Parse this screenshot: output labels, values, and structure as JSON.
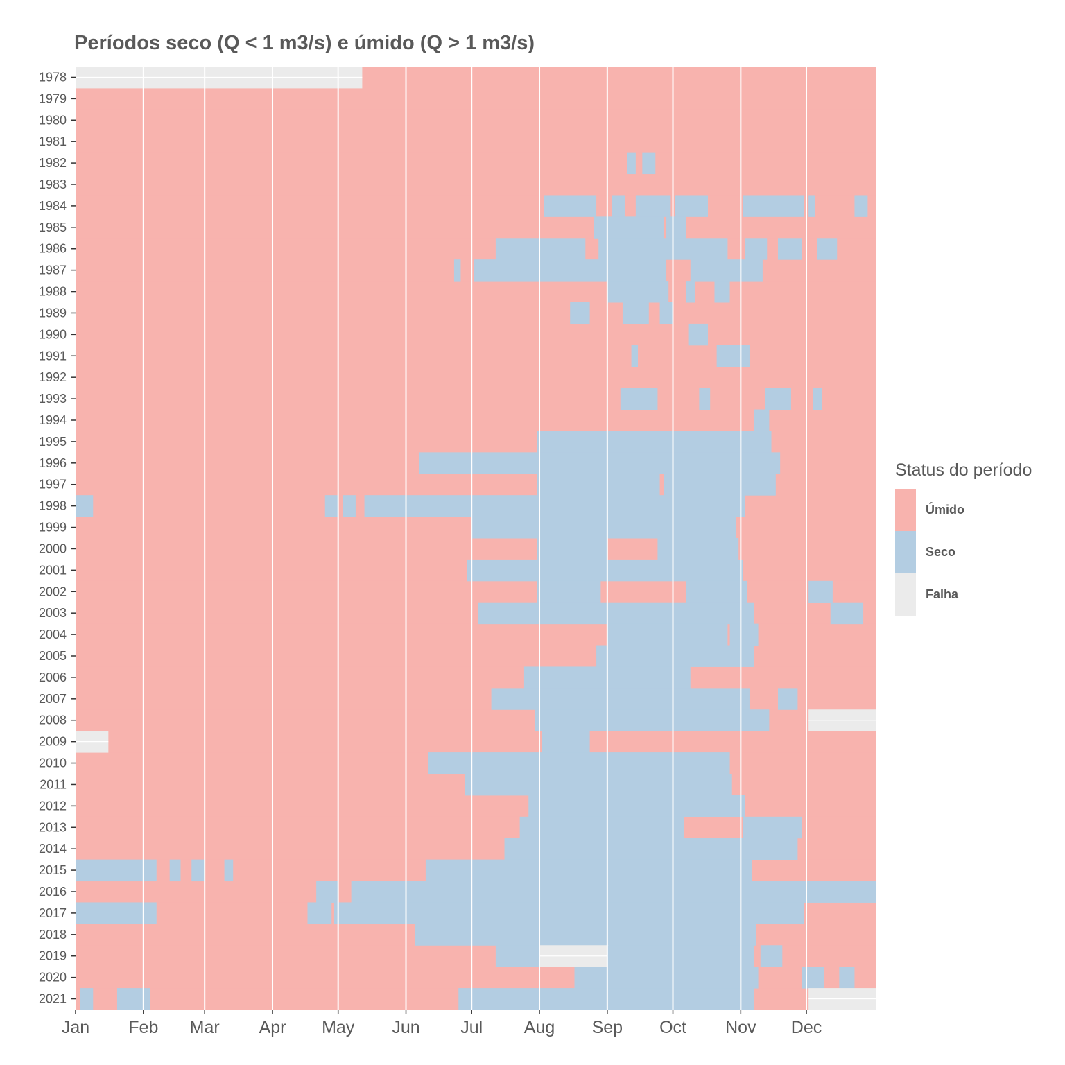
{
  "chart_data": {
    "type": "heatmap",
    "title": "Períodos seco (Q < 1 m3/s) e úmido (Q > 1 m3/s)",
    "xlabel": "",
    "ylabel": "",
    "x_unit": "day of year",
    "x_range": [
      1,
      366
    ],
    "x_ticks": [
      {
        "label": "Jan",
        "day": 1
      },
      {
        "label": "Feb",
        "day": 32
      },
      {
        "label": "Mar",
        "day": 60
      },
      {
        "label": "Apr",
        "day": 91
      },
      {
        "label": "May",
        "day": 121
      },
      {
        "label": "Jun",
        "day": 152
      },
      {
        "label": "Jul",
        "day": 182
      },
      {
        "label": "Aug",
        "day": 213
      },
      {
        "label": "Sep",
        "day": 244
      },
      {
        "label": "Oct",
        "day": 274
      },
      {
        "label": "Nov",
        "day": 305
      },
      {
        "label": "Dec",
        "day": 335
      }
    ],
    "years": [
      1978,
      1979,
      1980,
      1981,
      1982,
      1983,
      1984,
      1985,
      1986,
      1987,
      1988,
      1989,
      1990,
      1991,
      1992,
      1993,
      1994,
      1995,
      1996,
      1997,
      1998,
      1999,
      2000,
      2001,
      2002,
      2003,
      2004,
      2005,
      2006,
      2007,
      2008,
      2009,
      2010,
      2011,
      2012,
      2013,
      2014,
      2015,
      2016,
      2017,
      2018,
      2019,
      2020,
      2021
    ],
    "legend": {
      "title": "Status do período",
      "position": "right",
      "categories": [
        {
          "label": "Úmido",
          "color": "#F8B3AE"
        },
        {
          "label": "Seco",
          "color": "#B3CDE2"
        },
        {
          "label": "Falha",
          "color": "#EBEBEB"
        }
      ]
    },
    "default_status": "Úmido",
    "periods": [
      {
        "year": 1978,
        "status": "Falha",
        "start": 1,
        "end": 131
      },
      {
        "year": 1982,
        "status": "Seco",
        "start": 253,
        "end": 256
      },
      {
        "year": 1982,
        "status": "Seco",
        "start": 260,
        "end": 265
      },
      {
        "year": 1984,
        "status": "Seco",
        "start": 215,
        "end": 238
      },
      {
        "year": 1984,
        "status": "Seco",
        "start": 246,
        "end": 251
      },
      {
        "year": 1984,
        "status": "Seco",
        "start": 257,
        "end": 272
      },
      {
        "year": 1984,
        "status": "Seco",
        "start": 275,
        "end": 289
      },
      {
        "year": 1984,
        "status": "Seco",
        "start": 306,
        "end": 333
      },
      {
        "year": 1984,
        "status": "Seco",
        "start": 336,
        "end": 338
      },
      {
        "year": 1984,
        "status": "Seco",
        "start": 357,
        "end": 362
      },
      {
        "year": 1985,
        "status": "Seco",
        "start": 238,
        "end": 269
      },
      {
        "year": 1985,
        "status": "Seco",
        "start": 271,
        "end": 279
      },
      {
        "year": 1986,
        "status": "Seco",
        "start": 193,
        "end": 233
      },
      {
        "year": 1986,
        "status": "Seco",
        "start": 240,
        "end": 298
      },
      {
        "year": 1986,
        "status": "Seco",
        "start": 307,
        "end": 316
      },
      {
        "year": 1986,
        "status": "Seco",
        "start": 322,
        "end": 332
      },
      {
        "year": 1986,
        "status": "Seco",
        "start": 340,
        "end": 348
      },
      {
        "year": 1987,
        "status": "Seco",
        "start": 174,
        "end": 176
      },
      {
        "year": 1987,
        "status": "Seco",
        "start": 183,
        "end": 270
      },
      {
        "year": 1987,
        "status": "Seco",
        "start": 282,
        "end": 314
      },
      {
        "year": 1988,
        "status": "Seco",
        "start": 244,
        "end": 271
      },
      {
        "year": 1988,
        "status": "Seco",
        "start": 280,
        "end": 283
      },
      {
        "year": 1988,
        "status": "Seco",
        "start": 293,
        "end": 299
      },
      {
        "year": 1989,
        "status": "Seco",
        "start": 227,
        "end": 235
      },
      {
        "year": 1989,
        "status": "Seco",
        "start": 251,
        "end": 262
      },
      {
        "year": 1989,
        "status": "Seco",
        "start": 268,
        "end": 273
      },
      {
        "year": 1990,
        "status": "Seco",
        "start": 281,
        "end": 289
      },
      {
        "year": 1991,
        "status": "Seco",
        "start": 255,
        "end": 257
      },
      {
        "year": 1991,
        "status": "Seco",
        "start": 294,
        "end": 308
      },
      {
        "year": 1993,
        "status": "Seco",
        "start": 250,
        "end": 266
      },
      {
        "year": 1993,
        "status": "Seco",
        "start": 286,
        "end": 290
      },
      {
        "year": 1993,
        "status": "Seco",
        "start": 316,
        "end": 327
      },
      {
        "year": 1993,
        "status": "Seco",
        "start": 338,
        "end": 341
      },
      {
        "year": 1994,
        "status": "Seco",
        "start": 311,
        "end": 317
      },
      {
        "year": 1995,
        "status": "Seco",
        "start": 212,
        "end": 318
      },
      {
        "year": 1996,
        "status": "Seco",
        "start": 158,
        "end": 322
      },
      {
        "year": 1997,
        "status": "Seco",
        "start": 212,
        "end": 267
      },
      {
        "year": 1997,
        "status": "Seco",
        "start": 270,
        "end": 320
      },
      {
        "year": 1998,
        "status": "Seco",
        "start": 1,
        "end": 8
      },
      {
        "year": 1998,
        "status": "Seco",
        "start": 115,
        "end": 120
      },
      {
        "year": 1998,
        "status": "Seco",
        "start": 123,
        "end": 128
      },
      {
        "year": 1998,
        "status": "Seco",
        "start": 133,
        "end": 306
      },
      {
        "year": 1999,
        "status": "Seco",
        "start": 182,
        "end": 302
      },
      {
        "year": 2000,
        "status": "Seco",
        "start": 212,
        "end": 243
      },
      {
        "year": 2000,
        "status": "Seco",
        "start": 267,
        "end": 303
      },
      {
        "year": 2001,
        "status": "Seco",
        "start": 180,
        "end": 305
      },
      {
        "year": 2002,
        "status": "Seco",
        "start": 212,
        "end": 240
      },
      {
        "year": 2002,
        "status": "Seco",
        "start": 280,
        "end": 307
      },
      {
        "year": 2002,
        "status": "Seco",
        "start": 336,
        "end": 346
      },
      {
        "year": 2003,
        "status": "Seco",
        "start": 185,
        "end": 310
      },
      {
        "year": 2003,
        "status": "Seco",
        "start": 346,
        "end": 360
      },
      {
        "year": 2004,
        "status": "Seco",
        "start": 244,
        "end": 298
      },
      {
        "year": 2004,
        "status": "Seco",
        "start": 300,
        "end": 312
      },
      {
        "year": 2005,
        "status": "Seco",
        "start": 239,
        "end": 310
      },
      {
        "year": 2006,
        "status": "Seco",
        "start": 206,
        "end": 281
      },
      {
        "year": 2007,
        "status": "Seco",
        "start": 191,
        "end": 308
      },
      {
        "year": 2007,
        "status": "Seco",
        "start": 322,
        "end": 330
      },
      {
        "year": 2008,
        "status": "Seco",
        "start": 211,
        "end": 317
      },
      {
        "year": 2008,
        "status": "Falha",
        "start": 336,
        "end": 366
      },
      {
        "year": 2009,
        "status": "Falha",
        "start": 1,
        "end": 15
      },
      {
        "year": 2009,
        "status": "Seco",
        "start": 214,
        "end": 235
      },
      {
        "year": 2010,
        "status": "Seco",
        "start": 162,
        "end": 299
      },
      {
        "year": 2011,
        "status": "Seco",
        "start": 179,
        "end": 300
      },
      {
        "year": 2012,
        "status": "Seco",
        "start": 208,
        "end": 306
      },
      {
        "year": 2013,
        "status": "Seco",
        "start": 204,
        "end": 278
      },
      {
        "year": 2013,
        "status": "Seco",
        "start": 306,
        "end": 332
      },
      {
        "year": 2014,
        "status": "Seco",
        "start": 197,
        "end": 330
      },
      {
        "year": 2015,
        "status": "Seco",
        "start": 1,
        "end": 37
      },
      {
        "year": 2015,
        "status": "Seco",
        "start": 44,
        "end": 48
      },
      {
        "year": 2015,
        "status": "Seco",
        "start": 54,
        "end": 59
      },
      {
        "year": 2015,
        "status": "Seco",
        "start": 69,
        "end": 72
      },
      {
        "year": 2015,
        "status": "Seco",
        "start": 161,
        "end": 309
      },
      {
        "year": 2016,
        "status": "Seco",
        "start": 111,
        "end": 120
      },
      {
        "year": 2016,
        "status": "Seco",
        "start": 127,
        "end": 366
      },
      {
        "year": 2017,
        "status": "Seco",
        "start": 1,
        "end": 37
      },
      {
        "year": 2017,
        "status": "Seco",
        "start": 107,
        "end": 117
      },
      {
        "year": 2017,
        "status": "Seco",
        "start": 119,
        "end": 333
      },
      {
        "year": 2018,
        "status": "Seco",
        "start": 156,
        "end": 311
      },
      {
        "year": 2019,
        "status": "Seco",
        "start": 193,
        "end": 213
      },
      {
        "year": 2019,
        "status": "Falha",
        "start": 213,
        "end": 244
      },
      {
        "year": 2019,
        "status": "Seco",
        "start": 244,
        "end": 310
      },
      {
        "year": 2019,
        "status": "Seco",
        "start": 314,
        "end": 323
      },
      {
        "year": 2020,
        "status": "Seco",
        "start": 229,
        "end": 312
      },
      {
        "year": 2020,
        "status": "Seco",
        "start": 333,
        "end": 342
      },
      {
        "year": 2020,
        "status": "Seco",
        "start": 350,
        "end": 356
      },
      {
        "year": 2021,
        "status": "Seco",
        "start": 3,
        "end": 8
      },
      {
        "year": 2021,
        "status": "Seco",
        "start": 20,
        "end": 34
      },
      {
        "year": 2021,
        "status": "Seco",
        "start": 176,
        "end": 310
      },
      {
        "year": 2021,
        "status": "Falha",
        "start": 336,
        "end": 366
      }
    ]
  }
}
